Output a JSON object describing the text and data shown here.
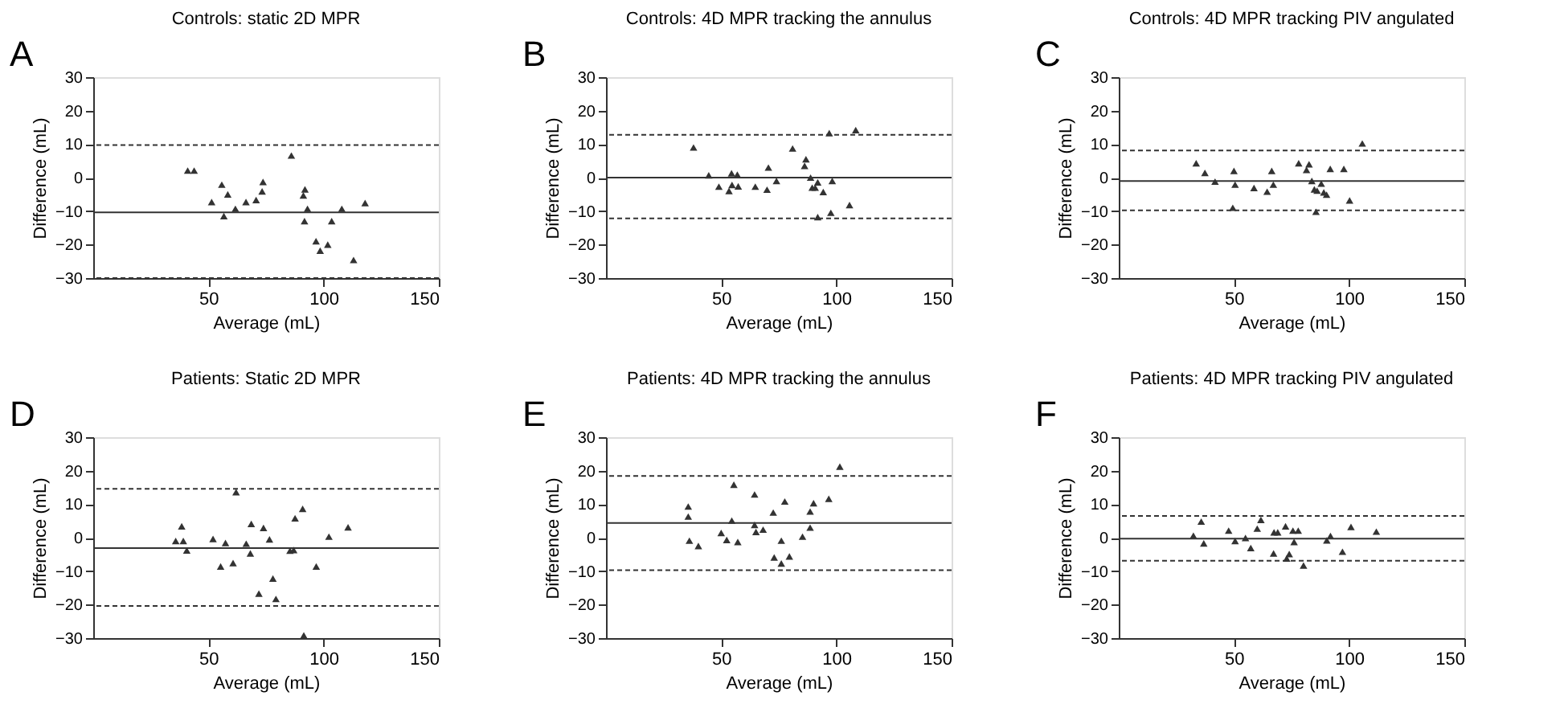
{
  "chart_data": [
    {
      "type": "scatter",
      "title": "Controls: static 2D MPR",
      "annotations": [
        "A"
      ],
      "xlabel": "Average (mL)",
      "ylabel": "Difference (mL)",
      "xlim": [
        0,
        150
      ],
      "xticks": [
        50,
        100,
        150
      ],
      "ylim": [
        -30,
        30
      ],
      "yticks": [
        -30,
        -20,
        -10,
        0,
        10,
        20,
        30
      ],
      "grid": false,
      "marker": "triangle",
      "color": "#333333",
      "x": [
        41,
        43.8,
        55.8,
        58.4,
        51.4,
        56.7,
        61.7,
        66.3,
        70.7,
        73.3,
        73.7,
        86,
        91.9,
        91.2,
        93,
        91.7,
        96.7,
        98.5,
        101.8,
        103.5,
        107.9,
        118,
        113
      ],
      "values": [
        2.1,
        2.1,
        -2.1,
        -5,
        -7.3,
        -11.5,
        -9.3,
        -7.3,
        -6.7,
        -4.1,
        -1.3,
        6.6,
        -3.5,
        -5.3,
        -9.3,
        -13,
        -19,
        -21.8,
        -20,
        -13,
        -9.3,
        -7.6,
        -24.6
      ],
      "ref_lines": [
        {
          "axis": "y",
          "value": -10.4,
          "line_style": "solid"
        },
        {
          "axis": "y",
          "value": 9.7,
          "line_style": "dashed"
        },
        {
          "axis": "y",
          "value": -30,
          "line_style": "dashed"
        }
      ]
    },
    {
      "type": "scatter",
      "title": "Controls: 4D MPR tracking the annulus",
      "annotations": [
        "B"
      ],
      "xlabel": "Average (mL)",
      "ylabel": "Difference (mL)",
      "xlim": [
        0,
        150
      ],
      "xticks": [
        50,
        100,
        150
      ],
      "ylim": [
        -30,
        30
      ],
      "yticks": [
        -30,
        -20,
        -10,
        0,
        10,
        20,
        30
      ],
      "grid": false,
      "marker": "triangle",
      "color": "#333333",
      "x": [
        38,
        44.6,
        49,
        53.4,
        54.7,
        54.5,
        57,
        57.4,
        64.8,
        69.9,
        70.5,
        74,
        81,
        86.8,
        86.2,
        88.8,
        89.5,
        90.8,
        91.9,
        94.3,
        91.9,
        96.9,
        98.2,
        97.6,
        105.7,
        108.4
      ],
      "values": [
        9,
        0.7,
        -2.7,
        -4,
        -2.2,
        1.3,
        0.9,
        -2.6,
        -2.7,
        -3.6,
        3,
        -1,
        8.7,
        5.5,
        3.5,
        0,
        -3,
        -3,
        -1.4,
        -4.3,
        -11.8,
        13.3,
        -1,
        -10.5,
        -8.2,
        14.2
      ],
      "ref_lines": [
        {
          "axis": "y",
          "value": 0,
          "line_style": "solid"
        },
        {
          "axis": "y",
          "value": 12.8,
          "line_style": "dashed"
        },
        {
          "axis": "y",
          "value": -12.2,
          "line_style": "dashed"
        }
      ]
    },
    {
      "type": "scatter",
      "title": "Controls: 4D MPR tracking PIV angulated",
      "annotations": [
        "C"
      ],
      "xlabel": "Average (mL)",
      "ylabel": "Difference (mL)",
      "xlim": [
        0,
        150
      ],
      "xticks": [
        50,
        100,
        150
      ],
      "ylim": [
        -30,
        30
      ],
      "yticks": [
        -30,
        -20,
        -10,
        0,
        10,
        20,
        30
      ],
      "grid": false,
      "marker": "triangle",
      "color": "#333333",
      "x": [
        33.6,
        37.4,
        41.8,
        50,
        50.5,
        49.5,
        58.7,
        64.4,
        66.4,
        67.1,
        78.1,
        81.5,
        82.6,
        83.8,
        84.9,
        86.1,
        87.9,
        89,
        90.2,
        85.6,
        91.8,
        97.7,
        100.2,
        105.7
      ],
      "values": [
        4.3,
        1.4,
        -1.2,
        2,
        -2.1,
        -9,
        -3.1,
        -4.2,
        2,
        -2.1,
        4.3,
        2.3,
        4,
        -1,
        -3.5,
        -3.9,
        -1.8,
        -4.4,
        -5.1,
        -10.2,
        2.6,
        2.6,
        -6.8,
        10.2
      ],
      "ref_lines": [
        {
          "axis": "y",
          "value": -1,
          "line_style": "solid"
        },
        {
          "axis": "y",
          "value": 8.1,
          "line_style": "dashed"
        },
        {
          "axis": "y",
          "value": -9.8,
          "line_style": "dashed"
        }
      ]
    },
    {
      "type": "scatter",
      "title": "Patients: Static 2D MPR",
      "annotations": [
        "D"
      ],
      "xlabel": "Average (mL)",
      "ylabel": "Difference (mL)",
      "xlim": [
        0,
        150
      ],
      "xticks": [
        50,
        100,
        150
      ],
      "ylim": [
        -30,
        30
      ],
      "yticks": [
        -30,
        -20,
        -10,
        0,
        10,
        20,
        30
      ],
      "grid": false,
      "marker": "triangle",
      "color": "#333333",
      "x": [
        35.8,
        38.4,
        39.1,
        40.6,
        52,
        55.3,
        57.4,
        60.7,
        62,
        66.4,
        68.2,
        68.6,
        71.9,
        73.9,
        76.5,
        78,
        79.3,
        85.4,
        87,
        87.6,
        90.9,
        91.4,
        96.8,
        102.3,
        110.6
      ],
      "values": [
        -1,
        3.4,
        -1,
        -3.8,
        -0.4,
        -8.6,
        -1.6,
        -7.6,
        13.6,
        -1.8,
        -4.7,
        4.1,
        -16.7,
        2.9,
        -0.5,
        -12.2,
        -18.3,
        -3.9,
        -3.7,
        5.8,
        8.6,
        -29.2,
        -8.6,
        0.3,
        3.1
      ],
      "ref_lines": [
        {
          "axis": "y",
          "value": -3.1,
          "line_style": "solid"
        },
        {
          "axis": "y",
          "value": 14.6,
          "line_style": "dashed"
        },
        {
          "axis": "y",
          "value": -20.4,
          "line_style": "dashed"
        }
      ]
    },
    {
      "type": "scatter",
      "title": "Patients: 4D MPR tracking the annulus",
      "annotations": [
        "E"
      ],
      "xlabel": "Average (mL)",
      "ylabel": "Difference (mL)",
      "xlim": [
        0,
        150
      ],
      "xticks": [
        50,
        100,
        150
      ],
      "ylim": [
        -30,
        30
      ],
      "yticks": [
        -30,
        -20,
        -10,
        0,
        10,
        20,
        30
      ],
      "grid": false,
      "marker": "triangle",
      "color": "#333333",
      "x": [
        35.7,
        35.7,
        36.2,
        40.1,
        50,
        52.4,
        54.6,
        55.5,
        57.2,
        64.5,
        64.5,
        65.1,
        68.2,
        72.6,
        73,
        76.1,
        76.1,
        77.6,
        79.6,
        85.3,
        88.6,
        88.6,
        90.1,
        96.7,
        101.5
      ],
      "values": [
        9.3,
        6.3,
        -0.9,
        -2.5,
        1.4,
        -0.7,
        5.1,
        15.8,
        -1.3,
        12.9,
        3.8,
        1.7,
        2.4,
        7.5,
        -5.9,
        -7.7,
        -0.9,
        10.8,
        -5.6,
        0.3,
        3,
        7.8,
        10.3,
        11.6,
        21.2
      ],
      "ref_lines": [
        {
          "axis": "y",
          "value": 4.4,
          "line_style": "solid"
        },
        {
          "axis": "y",
          "value": 18.4,
          "line_style": "dashed"
        },
        {
          "axis": "y",
          "value": -9.7,
          "line_style": "dashed"
        }
      ]
    },
    {
      "type": "scatter",
      "title": "Patients: 4D MPR tracking PIV angulated",
      "annotations": [
        "F"
      ],
      "xlabel": "Average (mL)",
      "ylabel": "Difference (mL)",
      "xlim": [
        0,
        150
      ],
      "xticks": [
        50,
        100,
        150
      ],
      "ylim": [
        -30,
        30
      ],
      "yticks": [
        -30,
        -20,
        -10,
        0,
        10,
        20,
        30
      ],
      "grid": false,
      "marker": "triangle",
      "color": "#333333",
      "x": [
        32.4,
        35.8,
        36.9,
        47.7,
        50.5,
        55,
        57.3,
        60.1,
        61.7,
        67.2,
        67.4,
        69,
        72.4,
        72.9,
        74,
        76.1,
        75.6,
        77.9,
        80.2,
        90.3,
        91.9,
        97.1,
        100.8,
        111.8
      ],
      "values": [
        0.6,
        4.8,
        -1.7,
        2.1,
        -1,
        -0.1,
        -3.1,
        2.7,
        5.3,
        -4.7,
        1.6,
        1.6,
        3.4,
        -6.2,
        -4.9,
        -1.3,
        2.1,
        2.1,
        -8.3,
        -0.8,
        0.5,
        -4.2,
        3.2,
        1.8
      ],
      "ref_lines": [
        {
          "axis": "y",
          "value": -0.3,
          "line_style": "solid"
        },
        {
          "axis": "y",
          "value": 6.5,
          "line_style": "dashed"
        },
        {
          "axis": "y",
          "value": -6.9,
          "line_style": "dashed"
        }
      ]
    }
  ]
}
